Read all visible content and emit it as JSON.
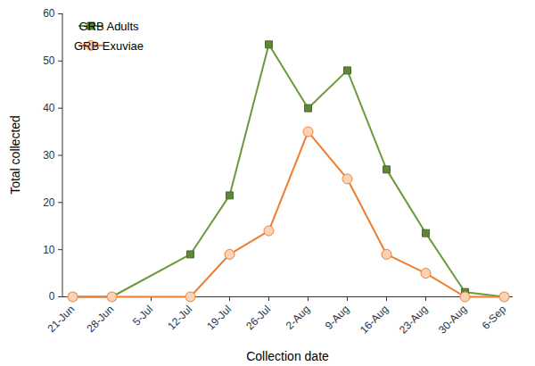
{
  "chart_data": {
    "type": "line",
    "x_label": "Collection date",
    "y_label": "Total collected",
    "x": [
      "21-Jun",
      "28-Jun",
      "12-Jul",
      "19-Jul",
      "26-Jul",
      "2-Aug",
      "9-Aug",
      "16-Aug",
      "23-Aug",
      "30-Aug",
      "6-Sep"
    ],
    "xticks": [
      "21-Jun",
      "28-Jun",
      "5-Jul",
      "12-Jul",
      "19-Jul",
      "26-Jul",
      "2-Aug",
      "9-Aug",
      "16-Aug",
      "23-Aug",
      "30-Aug",
      "6-Sep"
    ],
    "ylim": [
      0,
      60
    ],
    "yticks": [
      0,
      10,
      20,
      30,
      40,
      50,
      60
    ],
    "legend": "top-left",
    "series": [
      {
        "name": "GRB Adults",
        "color": "#6b9a3a",
        "marker": "square",
        "values": [
          0,
          0,
          9,
          21.5,
          53.5,
          40,
          48,
          27,
          13.5,
          1,
          0
        ]
      },
      {
        "name": "GRB Exuviae",
        "color": "#ed7d31",
        "marker": "circle",
        "values": [
          0,
          0,
          0,
          9,
          14,
          35,
          25,
          9,
          5,
          0,
          0
        ]
      }
    ]
  }
}
